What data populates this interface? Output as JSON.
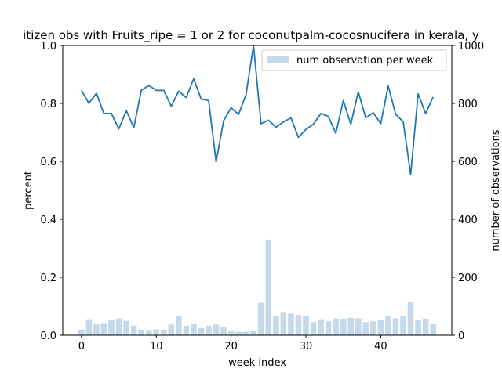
{
  "chart_data": {
    "type": "bar+line",
    "title": "itizen obs with Fruits_ripe = 1 or 2 for coconutpalm-cocosnucifera in kerala, y",
    "xlabel": "week index",
    "ylabel": "percent",
    "y2label": "number of observations",
    "xlim": [
      -2.5,
      49.5
    ],
    "ylim": [
      0,
      1.0
    ],
    "y2lim": [
      0,
      1000
    ],
    "x_ticks": [
      0,
      10,
      20,
      30,
      40
    ],
    "y_ticks": [
      0.0,
      0.2,
      0.4,
      0.6,
      0.8,
      1.0
    ],
    "y2_ticks": [
      0,
      200,
      400,
      600,
      800,
      1000
    ],
    "x_tick_labels": [
      "0",
      "10",
      "20",
      "30",
      "40"
    ],
    "y_tick_labels": [
      "0.0",
      "0.2",
      "0.4",
      "0.6",
      "0.8",
      "1.0"
    ],
    "y2_tick_labels": [
      "0",
      "200",
      "400",
      "600",
      "800",
      "1000"
    ],
    "legend": {
      "placement": "top-right",
      "entries": [
        "num observation per week"
      ]
    },
    "grid": false,
    "colors": {
      "line": "#1f77b4",
      "bars": "#c5d9ec"
    },
    "bar_series": {
      "name": "num observation per week",
      "axis": "right",
      "x": [
        0,
        1,
        2,
        3,
        4,
        5,
        6,
        7,
        8,
        9,
        10,
        11,
        12,
        13,
        14,
        15,
        16,
        17,
        18,
        19,
        20,
        21,
        22,
        23,
        24,
        25,
        26,
        27,
        28,
        29,
        30,
        31,
        32,
        33,
        34,
        35,
        36,
        37,
        38,
        39,
        40,
        41,
        42,
        43,
        44,
        45,
        46,
        47
      ],
      "values": [
        20,
        55,
        40,
        42,
        52,
        58,
        50,
        33,
        20,
        18,
        20,
        20,
        37,
        66,
        33,
        40,
        25,
        33,
        37,
        30,
        15,
        12,
        12,
        14,
        112,
        330,
        65,
        80,
        75,
        70,
        65,
        45,
        55,
        48,
        58,
        57,
        60,
        58,
        45,
        48,
        52,
        67,
        58,
        65,
        115,
        52,
        57,
        40
      ]
    },
    "line_series": {
      "axis": "left",
      "x": [
        0,
        1,
        2,
        3,
        4,
        5,
        6,
        7,
        8,
        9,
        10,
        11,
        12,
        13,
        14,
        15,
        16,
        17,
        18,
        19,
        20,
        21,
        22,
        23,
        24,
        25,
        26,
        27,
        28,
        29,
        30,
        31,
        32,
        33,
        34,
        35,
        36,
        37,
        38,
        39,
        40,
        41,
        42,
        43,
        44,
        45,
        46,
        47
      ],
      "values": [
        0.845,
        0.8,
        0.835,
        0.765,
        0.765,
        0.712,
        0.775,
        0.716,
        0.845,
        0.862,
        0.845,
        0.845,
        0.79,
        0.842,
        0.82,
        0.885,
        0.815,
        0.81,
        0.598,
        0.74,
        0.785,
        0.762,
        0.83,
        1.0,
        0.73,
        0.742,
        0.718,
        0.736,
        0.75,
        0.683,
        0.71,
        0.728,
        0.765,
        0.755,
        0.697,
        0.81,
        0.728,
        0.84,
        0.75,
        0.768,
        0.73,
        0.86,
        0.762,
        0.737,
        0.555,
        0.833,
        0.765,
        0.822
      ]
    }
  }
}
